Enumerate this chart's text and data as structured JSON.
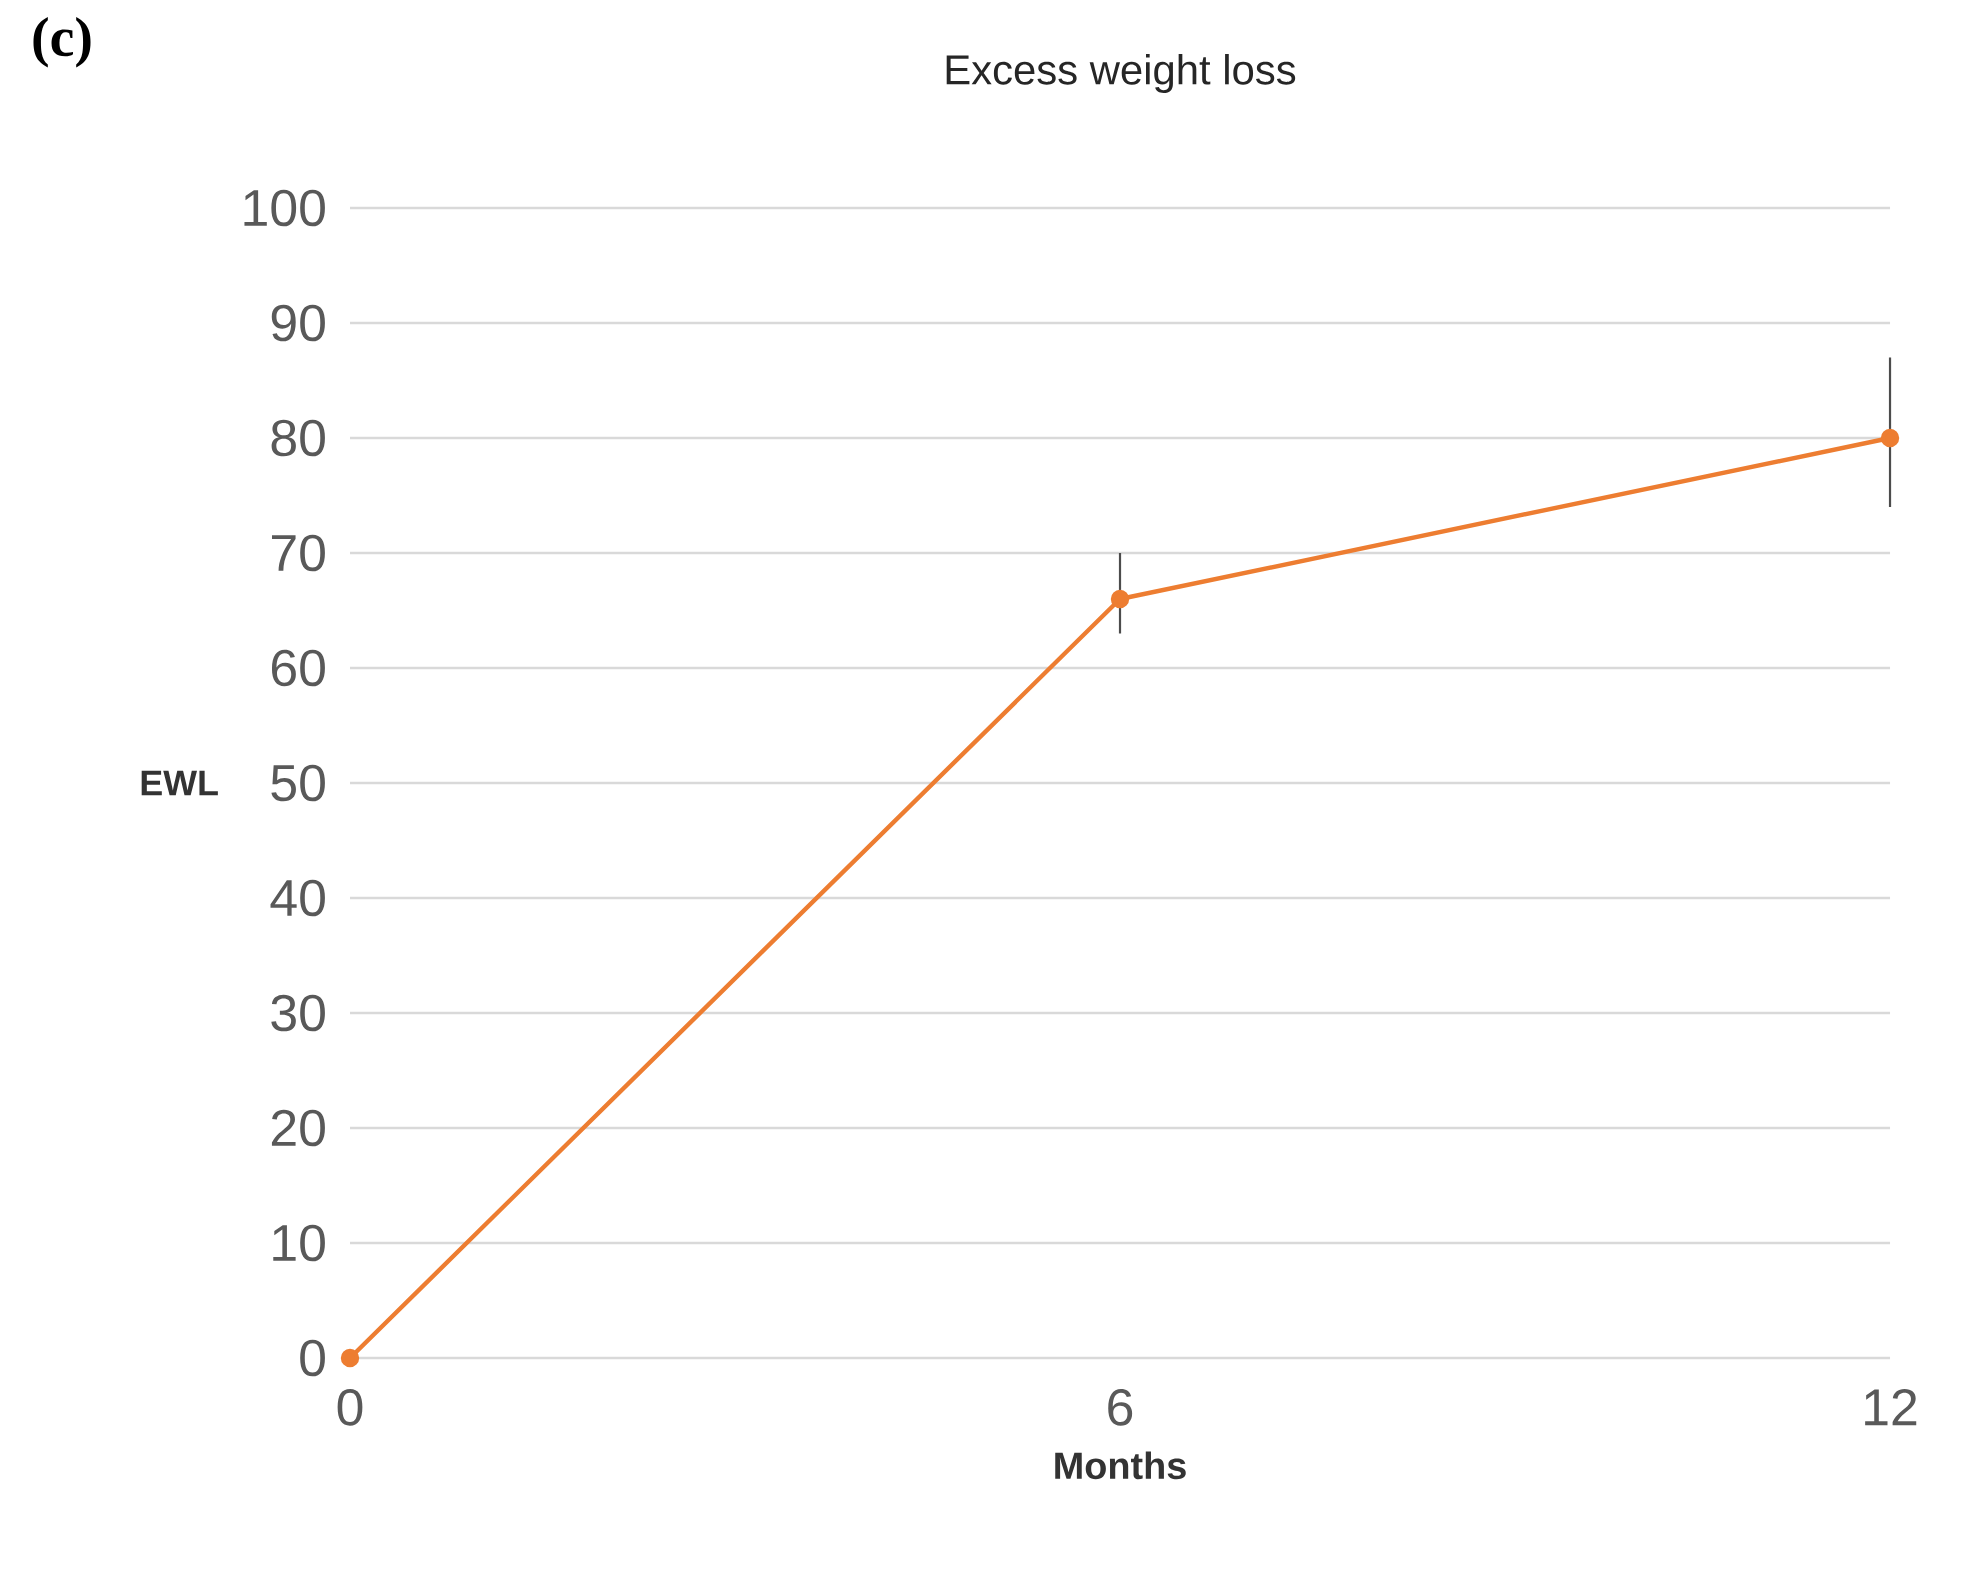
{
  "chart_data": {
    "type": "line",
    "title": "Excess weight loss",
    "xlabel": "Months",
    "ylabel": "EWL",
    "annotations": [
      "(c)"
    ],
    "x": [
      0,
      6,
      12
    ],
    "xlim": [
      0,
      12
    ],
    "xticks": [
      0,
      6,
      12
    ],
    "ylim": [
      0,
      100
    ],
    "yticks": [
      0,
      10,
      20,
      30,
      40,
      50,
      60,
      70,
      80,
      90,
      100
    ],
    "series": [
      {
        "color": "#ed7d31",
        "values": [
          0,
          66,
          80
        ],
        "errors": [
          null,
          [
            63,
            70
          ],
          [
            74,
            87
          ]
        ]
      }
    ],
    "grid": "y",
    "marker": "circle",
    "line_style": "solid"
  }
}
